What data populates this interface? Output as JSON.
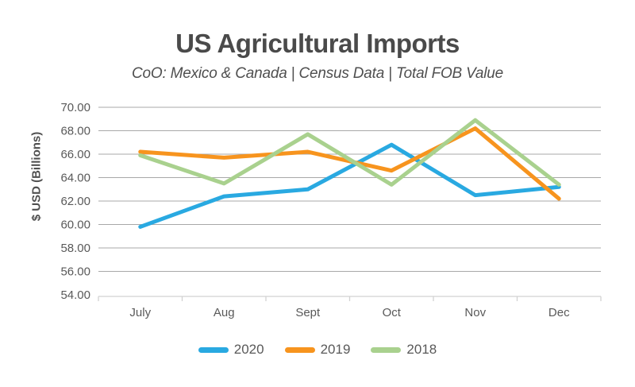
{
  "header": {
    "title": "US Agricultural Imports",
    "subtitle": "CoO: Mexico & Canada | Census Data | Total FOB Value"
  },
  "chart_data": {
    "type": "line",
    "title": "US Agricultural Imports",
    "subtitle": "CoO: Mexico & Canada | Census Data | Total FOB Value",
    "xlabel": "",
    "ylabel": "$ USD (Billions)",
    "categories": [
      "July",
      "Aug",
      "Sept",
      "Oct",
      "Nov",
      "Dec"
    ],
    "series": [
      {
        "name": "2020",
        "color": "#29A9E1",
        "values": [
          59.8,
          62.4,
          63.0,
          66.8,
          62.5,
          63.2
        ]
      },
      {
        "name": "2019",
        "color": "#F7941E",
        "values": [
          66.2,
          65.7,
          66.2,
          64.6,
          68.2,
          62.2
        ]
      },
      {
        "name": "2018",
        "color": "#A9D18E",
        "values": [
          65.9,
          63.5,
          67.7,
          63.4,
          68.9,
          63.4
        ]
      }
    ],
    "ylim": [
      54,
      70
    ],
    "yticks": [
      54,
      56,
      58,
      60,
      62,
      64,
      66,
      68,
      70
    ],
    "ytick_decimals": 2,
    "grid": true,
    "legend_position": "bottom",
    "line_width": 5,
    "colors": {
      "grid": "#A8A8A8",
      "axis": "#D2D2D2",
      "tick_label": "#595959",
      "title": "#4A4A4A",
      "subtitle": "#4F4F4F"
    }
  }
}
